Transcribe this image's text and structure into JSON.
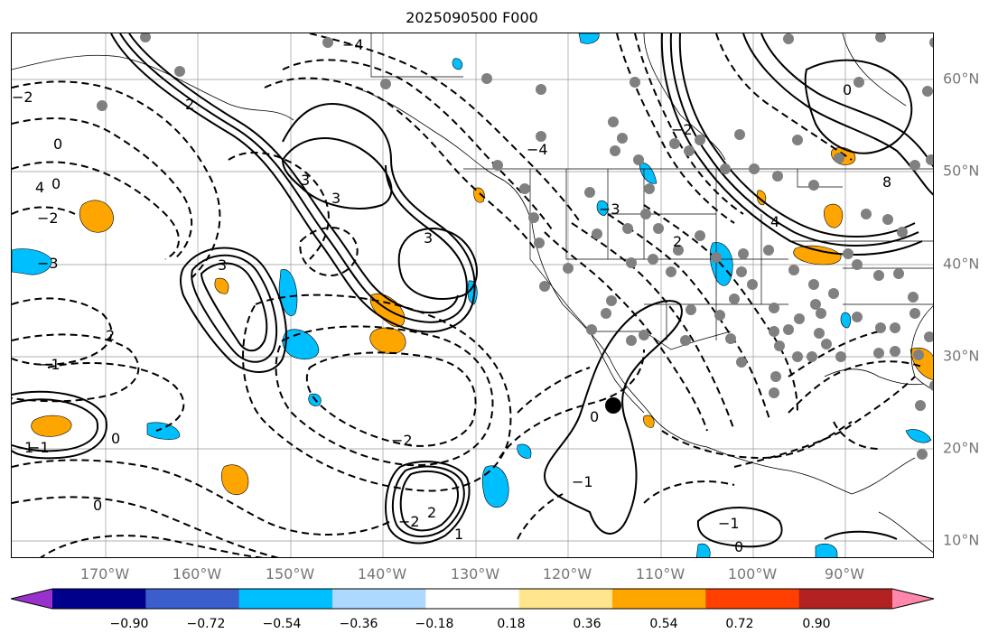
{
  "title": "2025090500 F000",
  "lon_labels": [
    "170°W",
    "160°W",
    "150°W",
    "140°W",
    "130°W",
    "120°W",
    "110°W",
    "100°W",
    "90°W"
  ],
  "lat_labels": [
    "60°N",
    "50°N",
    "40°N",
    "30°N",
    "20°N",
    "10°N"
  ],
  "colorbar": {
    "colors": [
      "#9932cc",
      "#00008b",
      "#3a5fcd",
      "#00bfff",
      "#add8ff",
      "#ffffff",
      "#ffe68c",
      "#ffa500",
      "#ff4000",
      "#b22222",
      "#ff88aa"
    ],
    "tick_labels": [
      "−0.90",
      "−0.72",
      "−0.54",
      "−0.36",
      "−0.18",
      "0.18",
      "0.36",
      "0.54",
      "0.72",
      "0.90"
    ]
  },
  "contour_labels": [
    "−4",
    "−2",
    "0",
    "2",
    "3",
    "−1",
    "−3",
    "−2",
    "0",
    "3",
    "3",
    "4",
    "3",
    "2",
    "−3",
    "−1",
    "1",
    "0",
    "−2",
    "2",
    "−2",
    "0",
    "−1",
    "−2",
    "2",
    "0",
    "8",
    "4",
    "−4",
    "0",
    "1",
    "0",
    "−1"
  ],
  "theme": {
    "line": "#000000",
    "dot": "#808080",
    "grid": "#999999",
    "border": "#000000"
  }
}
